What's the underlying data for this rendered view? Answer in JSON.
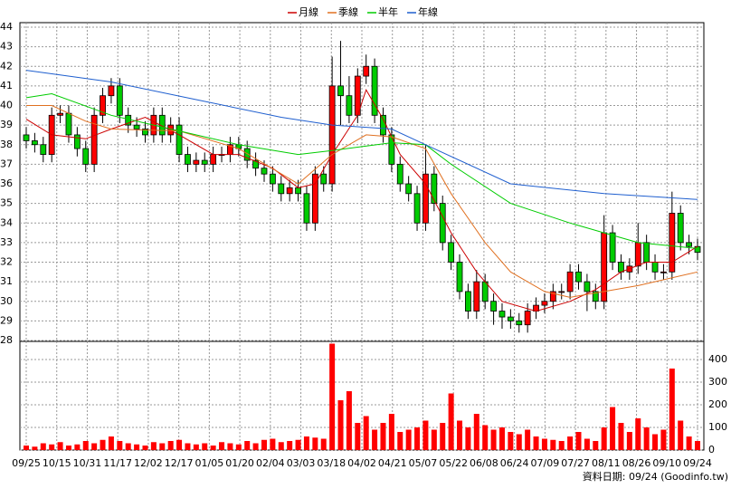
{
  "chart_data": {
    "type": "candlestick",
    "categories": [
      "09/25",
      "10/15",
      "10/31",
      "11/17",
      "12/02",
      "12/17",
      "01/05",
      "01/20",
      "02/04",
      "03/03",
      "03/18",
      "04/02",
      "04/21",
      "05/07",
      "05/22",
      "06/08",
      "06/24",
      "07/09",
      "07/27",
      "08/11",
      "08/26",
      "09/10",
      "09/24"
    ],
    "xlim": [
      0,
      79
    ],
    "ylim": [
      28,
      44
    ],
    "yticks": [
      28,
      29,
      30,
      31,
      32,
      33,
      34,
      35,
      36,
      37,
      38,
      39,
      40,
      41,
      42,
      43,
      44
    ],
    "grid": true,
    "up_color": "#ff0000",
    "down_color": "#00cc00",
    "open": [
      38.5,
      38.2,
      38,
      37.5,
      39.5,
      39.6,
      38.5,
      37.8,
      37,
      39.5,
      40.5,
      41,
      39.5,
      39,
      38.8,
      38.5,
      39.5,
      38.5,
      39,
      37.5,
      37,
      37.2,
      37,
      37.5,
      37.5,
      38,
      37.8,
      37.2,
      36.8,
      36.5,
      36,
      35.5,
      35.8,
      35.5,
      34,
      36.5,
      36,
      41,
      40.5,
      39.5,
      41.5,
      42,
      39.5,
      38.5,
      37,
      36,
      35.5,
      34,
      36.5,
      35,
      33,
      32,
      30.5,
      29.5,
      31,
      30,
      29.5,
      29.2,
      29,
      28.8,
      29.5,
      29.8,
      30,
      30.5,
      30.5,
      31.5,
      31,
      30.5,
      30,
      33.5,
      32,
      31.5,
      31.8,
      33,
      32,
      31.5,
      31.5,
      34.5,
      33,
      32.8
    ],
    "high": [
      38.9,
      38.6,
      38.4,
      39.9,
      40,
      40,
      38.9,
      38.2,
      39.9,
      40.9,
      41.4,
      41.4,
      39.9,
      39.4,
      39.2,
      39.9,
      39.9,
      39.4,
      39.4,
      37.9,
      37.6,
      37.6,
      37.9,
      37.9,
      38.4,
      38.4,
      38.2,
      37.6,
      37.2,
      36.9,
      36.4,
      36.2,
      36.2,
      35.9,
      36.9,
      36.9,
      42.5,
      43.3,
      41.5,
      41.9,
      42.6,
      42.4,
      39.9,
      38.9,
      37.4,
      36.4,
      35.9,
      38,
      36.9,
      35.4,
      33.4,
      32.4,
      30.9,
      31.6,
      31.4,
      30.4,
      29.9,
      29.6,
      29.4,
      29.9,
      30.2,
      30.4,
      30.9,
      30.9,
      31.9,
      31.9,
      31.4,
      30.9,
      34.4,
      33.9,
      32.4,
      32.2,
      34,
      33.4,
      32.4,
      31.9,
      35.6,
      34.9,
      33.4,
      33.2
    ],
    "low": [
      37.8,
      37.6,
      37.1,
      37.1,
      39.1,
      38.1,
      37.4,
      36.6,
      36.6,
      39.1,
      40.1,
      39.1,
      38.6,
      38.4,
      38.1,
      38.1,
      38.1,
      38.1,
      37.1,
      36.6,
      36.6,
      36.6,
      36.6,
      37.1,
      37.1,
      37.4,
      36.8,
      36.4,
      36.1,
      35.6,
      35.1,
      35.1,
      35.1,
      33.6,
      33.6,
      35.6,
      35.6,
      39,
      39.1,
      39.1,
      41.1,
      39.1,
      38.1,
      36.6,
      35.6,
      35.1,
      33.6,
      33.6,
      34.6,
      32.6,
      31.6,
      30.1,
      29.1,
      29.1,
      29.6,
      28.8,
      28.6,
      28.6,
      28.4,
      28.4,
      29.1,
      29.4,
      29.6,
      30.1,
      30.1,
      30.6,
      29.5,
      29.6,
      29.6,
      31.6,
      31.1,
      31.1,
      31.4,
      31.6,
      31.1,
      31.1,
      31.1,
      32.6,
      32.4,
      32.1
    ],
    "close": [
      38.2,
      38,
      37.5,
      39.5,
      39.6,
      38.5,
      37.8,
      37,
      39.5,
      40.5,
      41,
      39.5,
      39,
      38.8,
      38.5,
      39.5,
      38.5,
      39,
      37.5,
      37,
      37.2,
      37,
      37.5,
      37.5,
      38,
      37.8,
      37.2,
      36.8,
      36.5,
      36,
      35.5,
      35.8,
      35.5,
      34,
      36.5,
      36,
      41,
      40.5,
      39.5,
      41.5,
      42,
      39.5,
      38.5,
      37,
      36,
      35.5,
      34,
      36.5,
      35,
      33,
      32,
      30.5,
      29.5,
      31,
      30,
      29.5,
      29.2,
      29,
      28.8,
      29.5,
      29.8,
      30,
      30.5,
      30.5,
      31.5,
      31,
      30.5,
      30,
      33.5,
      32,
      31.5,
      31.8,
      33,
      32,
      31.5,
      31.5,
      34.5,
      33,
      32.8,
      32.5
    ],
    "series": [
      {
        "name": "月線",
        "color": "#cc0000",
        "x": [
          0,
          3,
          7,
          10,
          14,
          18,
          22,
          25,
          29,
          32,
          34,
          36,
          39,
          40,
          42,
          44,
          47,
          50,
          53,
          56,
          60,
          64,
          67,
          70,
          73,
          76,
          79
        ],
        "values": [
          39.3,
          38.5,
          38.3,
          38.8,
          39.4,
          38.5,
          37.5,
          37.5,
          36.8,
          35.8,
          36,
          37.5,
          39.5,
          40.8,
          39.3,
          37.5,
          36,
          33.5,
          31.5,
          30,
          29.5,
          30,
          30.6,
          31.5,
          32,
          32,
          32.8
        ]
      },
      {
        "name": "季線",
        "color": "#e07020",
        "x": [
          0,
          3,
          7,
          10,
          18,
          25,
          32,
          36,
          40,
          43,
          47,
          50,
          54,
          57,
          61,
          64,
          68,
          72,
          79
        ],
        "values": [
          40,
          40,
          39.2,
          38.8,
          38.7,
          37.8,
          36,
          37.5,
          38.5,
          38.4,
          37.8,
          35.5,
          33,
          31.5,
          30.5,
          30.2,
          30.5,
          30.8,
          31.5
        ]
      },
      {
        "name": "半年",
        "color": "#00cc00",
        "x": [
          0,
          3,
          10,
          18,
          25,
          32,
          36,
          43,
          47,
          50,
          57,
          64,
          68,
          72,
          79
        ],
        "values": [
          40.4,
          40.6,
          39.5,
          38.7,
          38,
          37.5,
          37.7,
          38.1,
          38,
          37,
          35,
          34,
          33.5,
          33,
          32.7
        ]
      },
      {
        "name": "年線",
        "color": "#1f5fcf",
        "x": [
          0,
          10,
          20,
          30,
          36,
          43,
          47,
          57,
          68,
          79
        ],
        "values": [
          41.8,
          41.2,
          40.3,
          39.4,
          39,
          38.8,
          38,
          36,
          35.5,
          35.2
        ]
      }
    ],
    "volume": {
      "color": "#ff0000",
      "ylim": [
        0,
        476
      ],
      "yticks": [
        0,
        100,
        200,
        300,
        400
      ],
      "values": [
        20,
        15,
        30,
        25,
        35,
        20,
        25,
        40,
        30,
        45,
        60,
        40,
        30,
        25,
        20,
        35,
        30,
        40,
        45,
        30,
        25,
        30,
        20,
        35,
        30,
        25,
        40,
        30,
        45,
        50,
        35,
        40,
        45,
        60,
        55,
        50,
        470,
        220,
        260,
        120,
        150,
        90,
        120,
        160,
        80,
        90,
        100,
        130,
        90,
        120,
        250,
        130,
        100,
        160,
        110,
        90,
        100,
        80,
        70,
        90,
        60,
        50,
        45,
        40,
        60,
        80,
        50,
        40,
        100,
        190,
        120,
        80,
        140,
        100,
        70,
        90,
        360,
        130,
        60,
        40
      ]
    },
    "source": "資料日期: 09/24 (Goodinfo.tw)"
  }
}
